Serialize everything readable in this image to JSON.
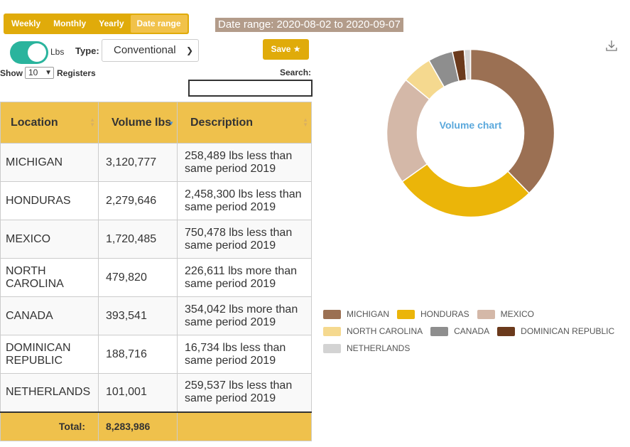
{
  "periods": [
    {
      "label": "Weekly",
      "active": false
    },
    {
      "label": "Monthly",
      "active": false
    },
    {
      "label": "Yearly",
      "active": false
    },
    {
      "label": "Date range",
      "active": true
    }
  ],
  "date_range_label": "Date range: 2020-08-02 to 2020-09-07",
  "unit_label": "Lbs",
  "type_label": "Type:",
  "type_value": "Conventional",
  "save_label": "Save ★",
  "show_prefix": "Show",
  "show_value": "10",
  "show_suffix": "Registers",
  "search_label": "Search:",
  "search_value": "",
  "table": {
    "headers": {
      "location": "Location",
      "volume": "Volume lbs",
      "description": "Description"
    },
    "rows": [
      {
        "location": "MICHIGAN",
        "volume": "3,120,777",
        "description": "258,489 lbs less than same period 2019"
      },
      {
        "location": "HONDURAS",
        "volume": "2,279,646",
        "description": "2,458,300 lbs less than same period 2019"
      },
      {
        "location": "MEXICO",
        "volume": "1,720,485",
        "description": "750,478 lbs less than same period 2019"
      },
      {
        "location": "NORTH CAROLINA",
        "volume": "479,820",
        "description": "226,611 lbs more than same period 2019"
      },
      {
        "location": "CANADA",
        "volume": "393,541",
        "description": "354,042 lbs more than same period 2019"
      },
      {
        "location": "DOMINICAN REPUBLIC",
        "volume": "188,716",
        "description": "16,734 lbs less than same period 2019"
      },
      {
        "location": "NETHERLANDS",
        "volume": "101,001",
        "description": "259,537 lbs less than same period 2019"
      }
    ],
    "total_label": "Total:",
    "total_value": "8,283,986"
  },
  "icons": {
    "download": "download-icon",
    "sort": "sort-icon",
    "chevron": "chevron-down-icon"
  },
  "chart_data": {
    "type": "pie",
    "title": "Volume chart",
    "categories": [
      "MICHIGAN",
      "HONDURAS",
      "MEXICO",
      "NORTH CAROLINA",
      "CANADA",
      "DOMINICAN REPUBLIC",
      "NETHERLANDS"
    ],
    "values": [
      3120777,
      2279646,
      1720485,
      479820,
      393541,
      188716,
      101001
    ],
    "colors": [
      "#9b7053",
      "#ebb509",
      "#d4b8a8",
      "#f5d98f",
      "#8e8e8e",
      "#6b3a1c",
      "#d3d3d3"
    ],
    "legend": "bottom"
  }
}
